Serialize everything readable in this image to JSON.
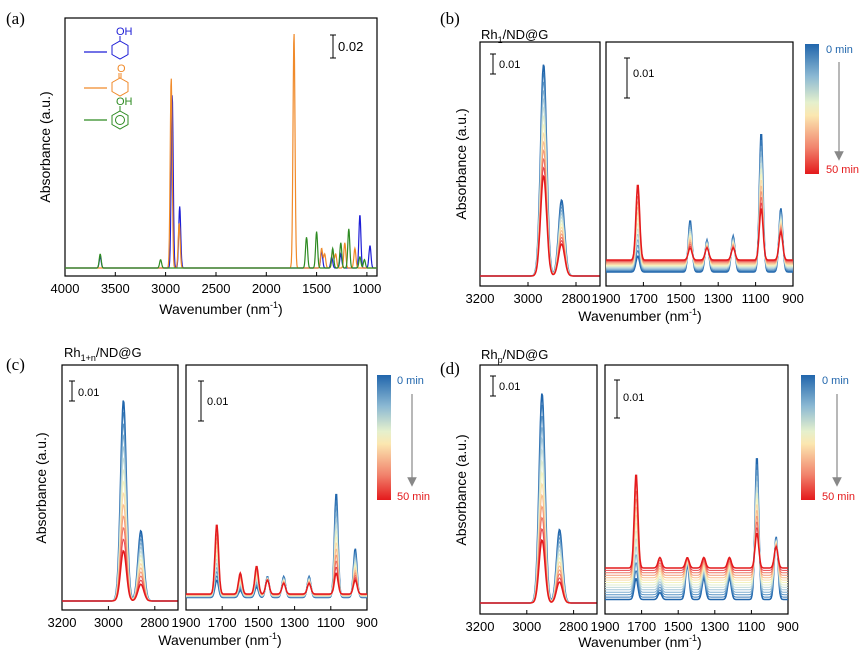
{
  "figure": {
    "panels": [
      {
        "id": "a",
        "label": "(a)",
        "ylabel": "Absorbance (a.u.)",
        "xlabel": "Wavenumber (nm",
        "xlabel_sup": "-1",
        "xlabel_close": ")",
        "xticks": [
          "4000",
          "3500",
          "3000",
          "2500",
          "2000",
          "1500",
          "1000"
        ],
        "scale_bar": "0.02",
        "legend": [
          {
            "name": "cyclohexanol",
            "sub": "OH",
            "color": "#1d1dd6"
          },
          {
            "name": "cyclohexanone",
            "sub": "O",
            "color": "#f08a2a"
          },
          {
            "name": "phenol",
            "sub": "OH",
            "color": "#2e8b22"
          }
        ]
      },
      {
        "id": "b",
        "label": "(b)",
        "catalyst": "Rh",
        "catalyst_sub": "1",
        "catalyst_rest": "/ND@G",
        "ylabel": "Absorbance (a.u.)",
        "xlabel": "Wavenumber (nm",
        "xlabel_sup": "-1",
        "xlabel_close": ")",
        "left_xticks": [
          "3200",
          "3000",
          "2800"
        ],
        "right_xticks": [
          "1900",
          "1700",
          "1500",
          "1300",
          "1100",
          "900"
        ],
        "scale_left": "0.01",
        "scale_right": "0.01",
        "colorbar_top": "0 min",
        "colorbar_bottom": "50 min"
      },
      {
        "id": "c",
        "label": "(c)",
        "catalyst": "Rh",
        "catalyst_sub": "1+n",
        "catalyst_rest": "/ND@G",
        "ylabel": "Absorbance (a.u.)",
        "xlabel": "Wavenumber (nm",
        "xlabel_sup": "-1",
        "xlabel_close": ")",
        "left_xticks": [
          "3200",
          "3000",
          "2800"
        ],
        "right_xticks": [
          "1900",
          "1700",
          "1500",
          "1300",
          "1100",
          "900"
        ],
        "scale_left": "0.01",
        "scale_right": "0.01",
        "colorbar_top": "0 min",
        "colorbar_bottom": "50 min"
      },
      {
        "id": "d",
        "label": "(d)",
        "catalyst": "Rh",
        "catalyst_sub": "p",
        "catalyst_rest": "/ND@G",
        "ylabel": "Absorbance (a.u.)",
        "xlabel": "Wavenumber (nm",
        "xlabel_sup": "-1",
        "xlabel_close": ")",
        "left_xticks": [
          "3200",
          "3000",
          "2800"
        ],
        "right_xticks": [
          "1900",
          "1700",
          "1500",
          "1300",
          "1100",
          "900"
        ],
        "scale_left": "0.01",
        "scale_right": "0.01",
        "colorbar_top": "0 min",
        "colorbar_bottom": "50 min"
      }
    ],
    "colorbar_colors": [
      "#2166ac",
      "#3a7bb8",
      "#5a93c4",
      "#7fadcf",
      "#a3c6d8",
      "#c4dcd9",
      "#dfeccd",
      "#f4f3c0",
      "#fbdcaa",
      "#f9be8f",
      "#f49a78",
      "#ee7263",
      "#e8454e",
      "#e41a1c"
    ]
  },
  "chart_data": [
    {
      "type": "line",
      "title": "(a)",
      "xlabel": "Wavenumber (nm-1)",
      "ylabel": "Absorbance (a.u.)",
      "xlim": [
        4000,
        900
      ],
      "series": [
        {
          "name": "cyclohexanol",
          "color": "#1d1dd6",
          "peaks": [
            {
              "x": 3650,
              "h": 0.004
            },
            {
              "x": 2935,
              "h": 0.062
            },
            {
              "x": 2860,
              "h": 0.022
            },
            {
              "x": 1450,
              "h": 0.006
            },
            {
              "x": 1350,
              "h": 0.004
            },
            {
              "x": 1260,
              "h": 0.005
            },
            {
              "x": 1070,
              "h": 0.019
            },
            {
              "x": 970,
              "h": 0.008
            }
          ]
        },
        {
          "name": "cyclohexanone",
          "color": "#f08a2a",
          "peaks": [
            {
              "x": 2945,
              "h": 0.068
            },
            {
              "x": 2865,
              "h": 0.016
            },
            {
              "x": 1725,
              "h": 0.084
            },
            {
              "x": 1450,
              "h": 0.007
            },
            {
              "x": 1420,
              "h": 0.005
            },
            {
              "x": 1340,
              "h": 0.006
            },
            {
              "x": 1310,
              "h": 0.005
            },
            {
              "x": 1220,
              "h": 0.009
            },
            {
              "x": 1120,
              "h": 0.007
            }
          ]
        },
        {
          "name": "phenol",
          "color": "#2e8b22",
          "peaks": [
            {
              "x": 3650,
              "h": 0.005
            },
            {
              "x": 3050,
              "h": 0.003
            },
            {
              "x": 1600,
              "h": 0.011
            },
            {
              "x": 1500,
              "h": 0.013
            },
            {
              "x": 1340,
              "h": 0.007
            },
            {
              "x": 1260,
              "h": 0.009
            },
            {
              "x": 1180,
              "h": 0.014
            },
            {
              "x": 1070,
              "h": 0.004
            },
            {
              "x": 1025,
              "h": 0.003
            }
          ]
        }
      ]
    },
    {
      "type": "line",
      "title": "(b) Rh1/ND@G",
      "xlabel": "Wavenumber (nm-1)",
      "ylabel": "Absorbance (a.u.)",
      "xlim_left": [
        3200,
        2700
      ],
      "xlim_right": [
        1900,
        900
      ],
      "time_min": [
        0,
        50
      ],
      "series_count": 14,
      "left_peaks": [
        {
          "x": 2935,
          "start": 0.053,
          "end": 0.025
        },
        {
          "x": 2860,
          "start": 0.019,
          "end": 0.008
        }
      ],
      "right_peaks": [
        {
          "x": 1730,
          "start": 0.004,
          "end": 0.019
        },
        {
          "x": 1450,
          "start": 0.013,
          "end": 0.003
        },
        {
          "x": 1360,
          "start": 0.008,
          "end": 0.003
        },
        {
          "x": 1220,
          "start": 0.009,
          "end": 0.003
        },
        {
          "x": 1070,
          "start": 0.035,
          "end": 0.013
        },
        {
          "x": 965,
          "start": 0.016,
          "end": 0.007
        }
      ],
      "right_baseline_start": 0.001,
      "right_baseline_end": 0.004
    },
    {
      "type": "line",
      "title": "(c) Rh1+n/ND@G",
      "xlabel": "Wavenumber (nm-1)",
      "ylabel": "Absorbance (a.u.)",
      "xlim_left": [
        3200,
        2700
      ],
      "xlim_right": [
        1900,
        900
      ],
      "time_min": [
        0,
        50
      ],
      "series_count": 14,
      "left_peaks": [
        {
          "x": 2935,
          "start": 0.06,
          "end": 0.015
        },
        {
          "x": 2860,
          "start": 0.021,
          "end": 0.005
        }
      ],
      "right_peaks": [
        {
          "x": 1730,
          "start": 0.005,
          "end": 0.02
        },
        {
          "x": 1600,
          "start": 0.002,
          "end": 0.006
        },
        {
          "x": 1510,
          "start": 0.003,
          "end": 0.008
        },
        {
          "x": 1450,
          "start": 0.006,
          "end": 0.004
        },
        {
          "x": 1360,
          "start": 0.006,
          "end": 0.003
        },
        {
          "x": 1220,
          "start": 0.006,
          "end": 0.003
        },
        {
          "x": 1070,
          "start": 0.03,
          "end": 0.006
        },
        {
          "x": 965,
          "start": 0.014,
          "end": 0.004
        }
      ],
      "right_baseline_start": 0.001,
      "right_baseline_end": 0.002
    },
    {
      "type": "line",
      "title": "(d) Rhp/ND@G",
      "xlabel": "Wavenumber (nm-1)",
      "ylabel": "Absorbance (a.u.)",
      "xlim_left": [
        3200,
        2700
      ],
      "xlim_right": [
        1900,
        900
      ],
      "time_min": [
        0,
        50
      ],
      "series_count": 14,
      "left_peaks": [
        {
          "x": 2935,
          "start": 0.06,
          "end": 0.018
        },
        {
          "x": 2860,
          "start": 0.021,
          "end": 0.006
        }
      ],
      "right_peaks": [
        {
          "x": 1730,
          "start": 0.006,
          "end": 0.027
        },
        {
          "x": 1600,
          "start": 0.002,
          "end": 0.003
        },
        {
          "x": 1450,
          "start": 0.01,
          "end": 0.003
        },
        {
          "x": 1360,
          "start": 0.006,
          "end": 0.003
        },
        {
          "x": 1220,
          "start": 0.006,
          "end": 0.003
        },
        {
          "x": 1070,
          "start": 0.041,
          "end": 0.01
        },
        {
          "x": 965,
          "start": 0.018,
          "end": 0.006
        }
      ],
      "right_baseline_start": 0.001,
      "right_baseline_end": 0.01
    }
  ]
}
